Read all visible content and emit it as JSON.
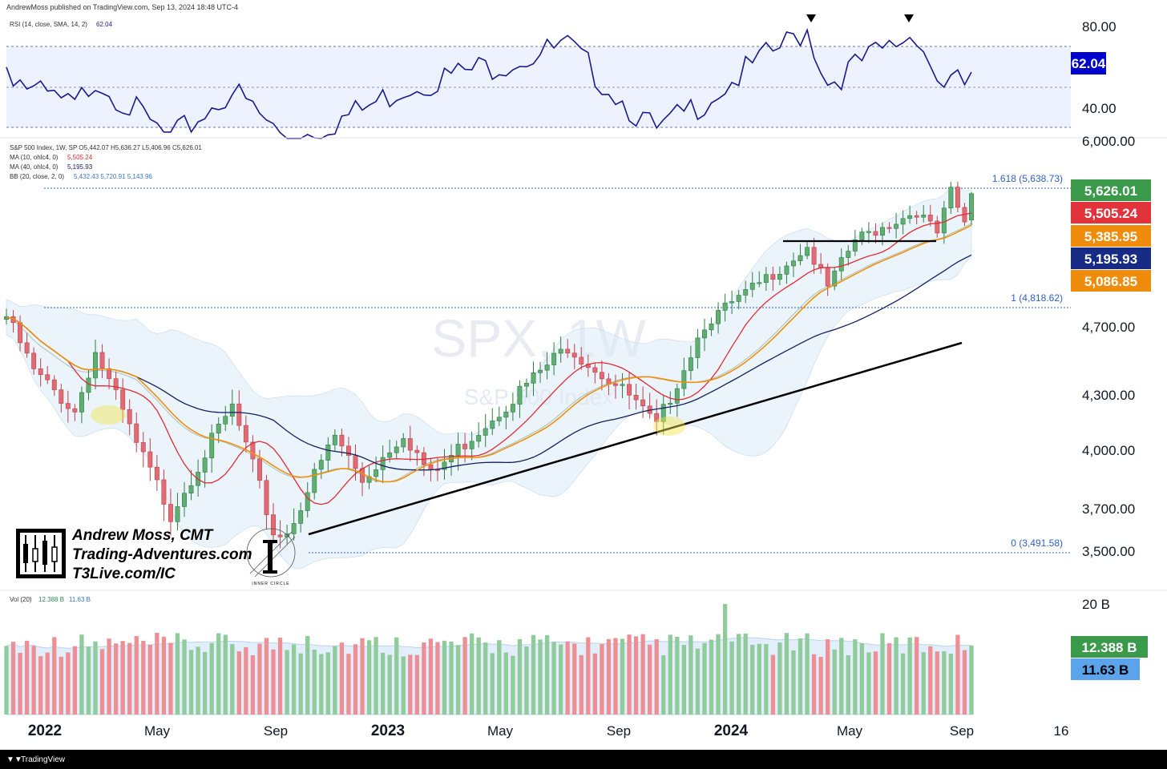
{
  "header": {
    "published": "AndrewMoss published on TradingView.com, Sep 13, 2024 18:48 UTC-4"
  },
  "watermark": {
    "symbol": "SPX, 1W",
    "name": "S&P 500 Index"
  },
  "rsi": {
    "legend": "RSI (14, close, SMA, 14, 2)",
    "value_label": "62.04",
    "ticks": [
      "80.00",
      "40.00"
    ]
  },
  "legend": {
    "symbol": "S&P 500 Index, 1W, SP  O5,442.07  H5,636.27  L5,406.96  C5,626.01",
    "ma10": "MA (10, ohlc4, 0)",
    "ma10_value": "5,505.24",
    "ma40": "MA (40, ohlc4, 0)",
    "ma40_value": "5,195.93",
    "bb": "BB (20, close, 2, 0)",
    "bb_values": "5,432.43  5,720.91  5,143.96"
  },
  "fib": [
    {
      "label": "1.618 (5,638.73)"
    },
    {
      "label": "1 (4,818.62)"
    },
    {
      "label": "0 (3,491.58)"
    }
  ],
  "price_axis": {
    "ticks": [
      "6,000.00",
      "4,700.00",
      "4,300.00",
      "4,000.00",
      "3,700.00",
      "3,500.00"
    ]
  },
  "price_badges": [
    {
      "label": "5,626.01",
      "color": "#3a9a4a"
    },
    {
      "label": "5,505.24",
      "color": "#e2323b"
    },
    {
      "label": "5,385.95",
      "color": "#f08c0c"
    },
    {
      "label": "5,195.93",
      "color": "#172a84"
    },
    {
      "label": "5,086.85",
      "color": "#f08c0c"
    }
  ],
  "volume": {
    "legend": "Vol (20)",
    "value_label": "12.388 B",
    "ma_label": "11.63 B",
    "tick": "20 B"
  },
  "time_axis": [
    "2022",
    "May",
    "Sep",
    "2023",
    "May",
    "Sep",
    "2024",
    "May",
    "Sep",
    "16"
  ],
  "watermark_author": {
    "name": "Andrew Moss, CMT",
    "site1": "Trading-Adventures.com",
    "site2": "T3Live.com/IC",
    "logo_caption": "INNER CIRCLE"
  },
  "footer": {
    "brand": "TradingView"
  },
  "colors": {
    "up": "#5fae72",
    "down": "#e26a72",
    "ma10": "#e02b35",
    "ma40": "#11205e",
    "ma_orange": "#f0900c",
    "rsi": "#1a1a8c",
    "fib": "#2f5fc4"
  },
  "chart_data": {
    "type": "candlestick",
    "title": "SPX, 1W",
    "subtitle": "S&P 500 Index",
    "x_range": [
      "2021-12-27",
      "2024-09-09"
    ],
    "price_anchors": [
      {
        "date": "2021-12-27",
        "close": 4766
      },
      {
        "date": "2022-01-24",
        "close": 4432
      },
      {
        "date": "2022-03-07",
        "close": 4204
      },
      {
        "date": "2022-03-28",
        "close": 4545
      },
      {
        "date": "2022-05-09",
        "close": 4023
      },
      {
        "date": "2022-06-13",
        "close": 3675
      },
      {
        "date": "2022-08-15",
        "close": 4228
      },
      {
        "date": "2022-09-26",
        "close": 3585
      },
      {
        "date": "2022-10-10",
        "close": 3583
      },
      {
        "date": "2022-11-28",
        "close": 4071
      },
      {
        "date": "2022-12-26",
        "close": 3839
      },
      {
        "date": "2023-02-06",
        "close": 4090
      },
      {
        "date": "2023-03-06",
        "close": 3861
      },
      {
        "date": "2023-05-29",
        "close": 4282
      },
      {
        "date": "2023-07-24",
        "close": 4582
      },
      {
        "date": "2023-09-25",
        "close": 4288
      },
      {
        "date": "2023-10-23",
        "close": 4117
      },
      {
        "date": "2023-12-11",
        "close": 4719
      },
      {
        "date": "2024-01-29",
        "close": 4958
      },
      {
        "date": "2024-03-25",
        "close": 5254
      },
      {
        "date": "2024-04-15",
        "close": 4967
      },
      {
        "date": "2024-05-13",
        "close": 5303
      },
      {
        "date": "2024-07-15",
        "close": 5505
      },
      {
        "date": "2024-08-05",
        "close": 5344
      },
      {
        "date": "2024-08-19",
        "close": 5634
      },
      {
        "date": "2024-09-02",
        "close": 5408
      },
      {
        "date": "2024-09-09",
        "close": 5626
      }
    ],
    "rsi_anchors": [
      {
        "date": "2021-12-27",
        "value": 64
      },
      {
        "date": "2022-01-24",
        "value": 54
      },
      {
        "date": "2022-03-07",
        "value": 48
      },
      {
        "date": "2022-03-28",
        "value": 60
      },
      {
        "date": "2022-06-13",
        "value": 35
      },
      {
        "date": "2022-08-15",
        "value": 55
      },
      {
        "date": "2022-10-10",
        "value": 35
      },
      {
        "date": "2022-12-26",
        "value": 47
      },
      {
        "date": "2023-02-06",
        "value": 56
      },
      {
        "date": "2023-07-24",
        "value": 72
      },
      {
        "date": "2023-10-23",
        "value": 38
      },
      {
        "date": "2024-03-25",
        "value": 79
      },
      {
        "date": "2024-04-15",
        "value": 58
      },
      {
        "date": "2024-07-15",
        "value": 78
      },
      {
        "date": "2024-08-05",
        "value": 59
      },
      {
        "date": "2024-09-02",
        "value": 57
      },
      {
        "date": "2024-09-09",
        "value": 62.04
      }
    ],
    "ohlc_last": {
      "open": 5442.07,
      "high": 5636.27,
      "low": 5406.96,
      "close": 5626.01
    },
    "indicators": {
      "ma10": 5505.24,
      "ma40": 5195.93,
      "ma_orange": [
        5385.95,
        5086.85
      ],
      "bb_20": {
        "basis": 5432.43,
        "upper": 5720.91,
        "lower": 5143.96
      },
      "rsi": 62.04
    },
    "fibonacci": [
      {
        "level": 1.618,
        "price": 5638.73
      },
      {
        "level": 1,
        "price": 4818.62
      },
      {
        "level": 0,
        "price": 3491.58
      }
    ],
    "volume": {
      "last": "12.388 B",
      "ma20": "11.63 B"
    },
    "y_ticks": [
      3500,
      3700,
      4000,
      4300,
      4700,
      6000
    ],
    "rsi_ticks": [
      40,
      80
    ]
  }
}
